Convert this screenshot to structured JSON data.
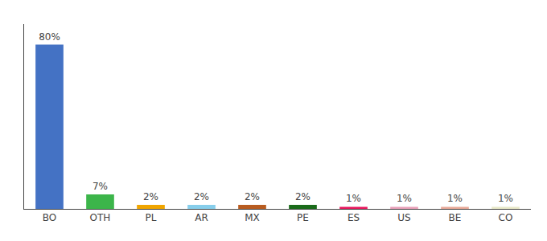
{
  "chart_data": {
    "type": "bar",
    "categories": [
      "BO",
      "OTH",
      "PL",
      "AR",
      "MX",
      "PE",
      "ES",
      "US",
      "BE",
      "CO"
    ],
    "values": [
      80,
      7,
      2,
      2,
      2,
      2,
      1,
      1,
      1,
      1
    ],
    "value_labels": [
      "80%",
      "7%",
      "2%",
      "2%",
      "2%",
      "2%",
      "1%",
      "1%",
      "1%",
      "1%"
    ],
    "colors": [
      "#4472c4",
      "#3cb54a",
      "#f0a500",
      "#87ceeb",
      "#b85c20",
      "#1a6b1a",
      "#e8175d",
      "#e8a0b8",
      "#e8a898",
      "#e8e8c8"
    ],
    "ylim": [
      0,
      90
    ],
    "data_labels": true,
    "tick_labels": "x",
    "grid": false
  }
}
